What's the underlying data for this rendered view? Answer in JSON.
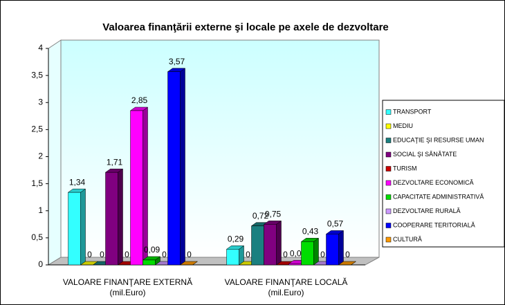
{
  "chart_data": {
    "type": "bar3d",
    "title": "Valoarea finanţării externe şi locale pe axele de dezvoltare",
    "categories": [
      "VALOARE FINANŢARE EXTERNĂ\n(mil.Euro)",
      "VALOARE FINANŢARE LOCALĂ\n(mil.Euro)"
    ],
    "ylim": [
      0,
      4
    ],
    "yticks": [
      0,
      {
        "value": 0.5,
        "label": "0,5"
      },
      1,
      {
        "value": 1.5,
        "label": "1,5"
      },
      2,
      {
        "value": 2.5,
        "label": "2,5"
      },
      3,
      {
        "value": 3.5,
        "label": "3,5"
      },
      4
    ],
    "legend": "right",
    "series": [
      {
        "name": "TRANSPORT",
        "color": "#33ffff",
        "values": [
          1.34,
          0.29
        ],
        "value_labels": [
          "1,34",
          "0,29"
        ]
      },
      {
        "name": "MEDIU",
        "color": "#ffff00",
        "values": [
          0,
          0
        ],
        "value_labels": [
          "0",
          "0"
        ]
      },
      {
        "name": "EDUCAŢIE ŞI RESURSE UMAN",
        "color": "#1a8080",
        "values": [
          0,
          0.72
        ],
        "value_labels": [
          "0",
          "0,72"
        ]
      },
      {
        "name": "SOCIAL ŞI SĂNĂTATE",
        "color": "#800080",
        "values": [
          1.71,
          0.75
        ],
        "value_labels": [
          "1,71",
          "0,75"
        ]
      },
      {
        "name": "TURISM",
        "color": "#cc0000",
        "values": [
          0,
          0
        ],
        "value_labels": [
          "0",
          "0"
        ]
      },
      {
        "name": "DEZVOLTARE ECONOMICĂ",
        "color": "#ff00ff",
        "values": [
          2.85,
          0.02
        ],
        "value_labels": [
          "2,85",
          "0,02"
        ]
      },
      {
        "name": "CAPACITATE ADMINISTRATIVĂ",
        "color": "#00dd00",
        "values": [
          0.09,
          0.43
        ],
        "value_labels": [
          "0,09",
          "0,43"
        ]
      },
      {
        "name": "DEZVOLTARE RURALĂ",
        "color": "#cc99ff",
        "values": [
          0,
          0
        ],
        "value_labels": [
          "0",
          "0"
        ]
      },
      {
        "name": "COOPERARE TERITORIALĂ",
        "color": "#0000ff",
        "values": [
          3.57,
          0.57
        ],
        "value_labels": [
          "3,57",
          "0,57"
        ]
      },
      {
        "name": "CULTURĂ",
        "color": "#ff9900",
        "values": [
          0,
          0
        ],
        "value_labels": [
          "0",
          "0"
        ]
      }
    ]
  }
}
